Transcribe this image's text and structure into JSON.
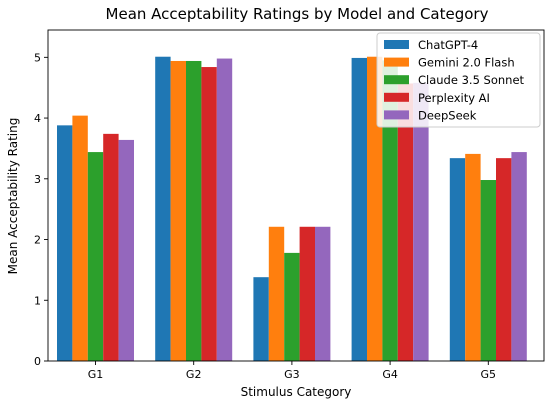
{
  "chart_data": {
    "type": "bar",
    "title": "Mean Acceptability Ratings by Model and Category",
    "xlabel": "Stimulus Category",
    "ylabel": "Mean Acceptability Rating",
    "ylim": [
      0,
      5.45
    ],
    "yticks": [
      0,
      1,
      2,
      3,
      4,
      5
    ],
    "categories": [
      "G1",
      "G2",
      "G3",
      "G4",
      "G5"
    ],
    "grid": false,
    "legend_position": "top-right",
    "series": [
      {
        "name": "ChatGPT-4",
        "color": "#1f77b4",
        "values": [
          3.88,
          5.01,
          1.38,
          4.99,
          3.34
        ]
      },
      {
        "name": "Gemini 2.0 Flash",
        "color": "#ff7f0e",
        "values": [
          4.04,
          4.94,
          2.21,
          5.01,
          3.41
        ]
      },
      {
        "name": "Claude 3.5 Sonnet",
        "color": "#2ca02c",
        "values": [
          3.44,
          4.94,
          1.78,
          4.95,
          2.98
        ]
      },
      {
        "name": "Perplexity AI",
        "color": "#d62728",
        "values": [
          3.74,
          4.84,
          2.21,
          4.57,
          3.34
        ]
      },
      {
        "name": "DeepSeek",
        "color": "#9467bd",
        "values": [
          3.64,
          4.98,
          2.21,
          4.58,
          3.44
        ]
      }
    ]
  }
}
